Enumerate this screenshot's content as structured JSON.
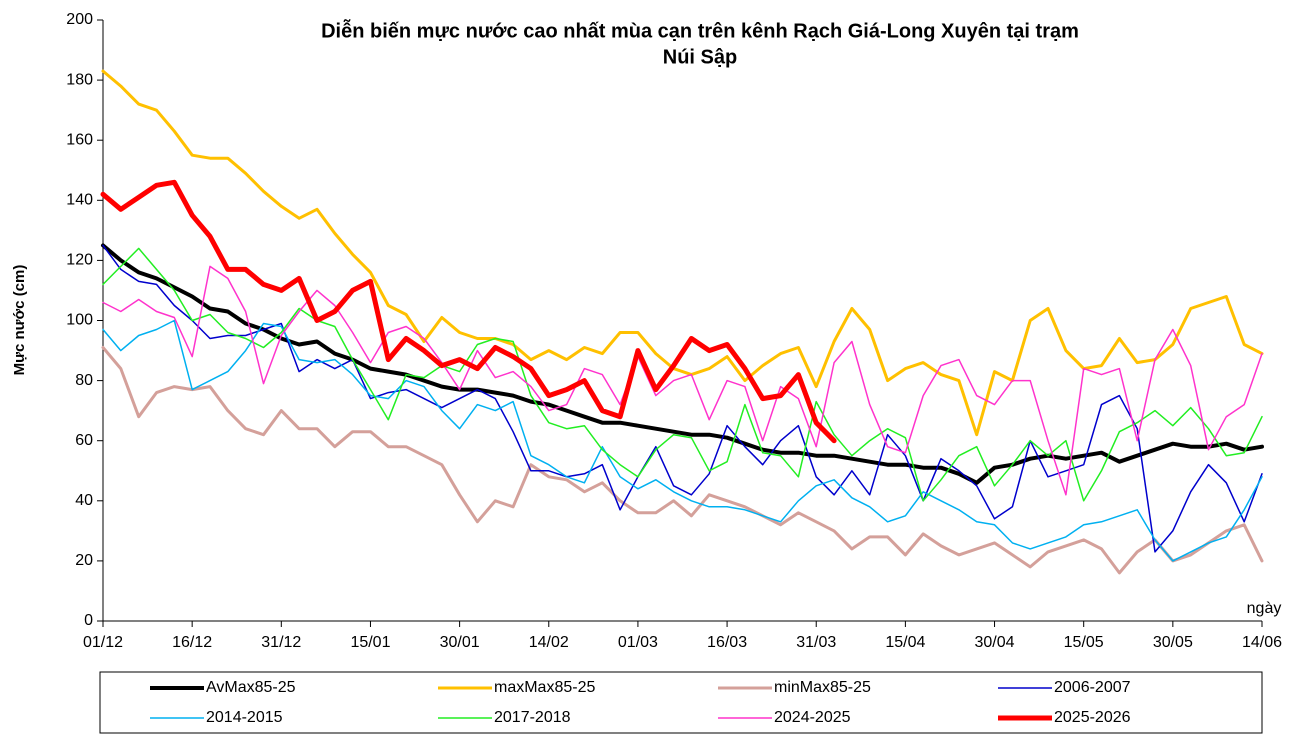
{
  "chart_data": {
    "type": "line",
    "title": [
      "Diễn biến mực nước cao nhất mùa cạn trên kênh Rạch Giá-Long Xuyên tại trạm",
      "Núi Sập"
    ],
    "y_label": "Mực nước (cm)",
    "x_label": "ngày",
    "x": [
      0,
      3,
      6,
      9,
      12,
      15,
      18,
      21,
      24,
      27,
      30,
      33,
      36,
      39,
      42,
      45,
      48,
      51,
      54,
      57,
      60,
      63,
      66,
      69,
      72,
      75,
      78,
      81,
      84,
      87,
      90,
      93,
      96,
      99,
      102,
      105,
      108,
      111,
      114,
      117,
      120,
      123,
      126,
      129,
      132,
      135,
      138,
      141,
      144,
      147,
      150,
      153,
      156,
      159,
      162,
      165,
      168,
      171,
      174,
      177,
      180,
      183,
      186,
      189,
      192,
      195
    ],
    "xlim": [
      0,
      195
    ],
    "xticks": [
      {
        "value": 0,
        "label": "01/12"
      },
      {
        "value": 15,
        "label": "16/12"
      },
      {
        "value": 30,
        "label": "31/12"
      },
      {
        "value": 45,
        "label": "15/01"
      },
      {
        "value": 60,
        "label": "30/01"
      },
      {
        "value": 75,
        "label": "14/02"
      },
      {
        "value": 90,
        "label": "01/03"
      },
      {
        "value": 105,
        "label": "16/03"
      },
      {
        "value": 120,
        "label": "31/03"
      },
      {
        "value": 135,
        "label": "15/04"
      },
      {
        "value": 150,
        "label": "30/04"
      },
      {
        "value": 165,
        "label": "15/05"
      },
      {
        "value": 180,
        "label": "30/05"
      },
      {
        "value": 195,
        "label": "14/06"
      }
    ],
    "ylim": [
      0,
      200
    ],
    "yticks": [
      0,
      20,
      40,
      60,
      80,
      100,
      120,
      140,
      160,
      180,
      200
    ],
    "grid": false,
    "legend": "bottom",
    "series": [
      {
        "name": "AvMax85-25",
        "color": "#000000",
        "width": 4,
        "values": [
          125,
          120,
          116,
          114,
          111,
          108,
          104,
          103,
          99,
          97,
          94,
          92,
          93,
          89,
          87,
          84,
          83,
          82,
          80,
          78,
          77,
          77,
          76,
          75,
          73,
          72,
          70,
          68,
          66,
          66,
          65,
          64,
          63,
          62,
          62,
          61,
          59,
          57,
          56,
          56,
          55,
          55,
          54,
          53,
          52,
          52,
          51,
          51,
          49,
          46,
          51,
          52,
          54,
          55,
          54,
          55,
          56,
          53,
          55,
          57,
          59,
          58,
          58,
          59,
          57,
          58
        ]
      },
      {
        "name": "maxMax85-25",
        "color": "#ffc000",
        "width": 3,
        "values": [
          183,
          178,
          172,
          170,
          163,
          155,
          154,
          154,
          149,
          143,
          138,
          134,
          137,
          129,
          122,
          116,
          105,
          102,
          93,
          101,
          96,
          94,
          94,
          92,
          87,
          90,
          87,
          91,
          89,
          96,
          96,
          89,
          84,
          82,
          84,
          88,
          80,
          85,
          89,
          91,
          78,
          93,
          104,
          97,
          80,
          84,
          86,
          82,
          80,
          62,
          83,
          80,
          100,
          104,
          90,
          84,
          85,
          94,
          86,
          87,
          92,
          104,
          106,
          108,
          92,
          89
        ]
      },
      {
        "name": "minMax85-25",
        "color": "#d4a09a",
        "width": 3,
        "values": [
          91,
          84,
          68,
          76,
          78,
          77,
          78,
          70,
          64,
          62,
          70,
          64,
          64,
          58,
          63,
          63,
          58,
          58,
          55,
          52,
          42,
          33,
          40,
          38,
          52,
          48,
          47,
          43,
          46,
          40,
          36,
          36,
          40,
          35,
          42,
          40,
          38,
          35,
          32,
          36,
          33,
          30,
          24,
          28,
          28,
          22,
          29,
          25,
          22,
          24,
          26,
          22,
          18,
          23,
          25,
          27,
          24,
          16,
          23,
          27,
          20,
          22,
          26,
          30,
          32,
          20
        ]
      },
      {
        "name": "2006-2007",
        "color": "#0000cc",
        "width": 1.5,
        "values": [
          125,
          117,
          113,
          112,
          105,
          100,
          94,
          95,
          95,
          97,
          99,
          83,
          87,
          84,
          87,
          74,
          76,
          77,
          74,
          71,
          74,
          77,
          74,
          63,
          50,
          50,
          48,
          49,
          52,
          37,
          48,
          58,
          45,
          42,
          49,
          65,
          58,
          52,
          60,
          65,
          48,
          42,
          50,
          42,
          62,
          55,
          40,
          54,
          50,
          45,
          34,
          38,
          60,
          48,
          50,
          52,
          72,
          75,
          64,
          23,
          30,
          43,
          52,
          46,
          33,
          49
        ]
      },
      {
        "name": "2014-2015",
        "color": "#00b0f0",
        "width": 1.5,
        "values": [
          97,
          90,
          95,
          97,
          100,
          77,
          80,
          83,
          90,
          99,
          98,
          87,
          86,
          87,
          82,
          75,
          74,
          80,
          78,
          70,
          64,
          72,
          70,
          73,
          55,
          52,
          48,
          46,
          58,
          48,
          44,
          47,
          43,
          40,
          38,
          38,
          37,
          35,
          33,
          40,
          45,
          47,
          41,
          38,
          33,
          35,
          43,
          40,
          37,
          33,
          32,
          26,
          24,
          26,
          28,
          32,
          33,
          35,
          37,
          27,
          20,
          23,
          26,
          28,
          37,
          48
        ]
      },
      {
        "name": "2017-2018",
        "color": "#22ee22",
        "width": 1.5,
        "values": [
          112,
          118,
          124,
          117,
          110,
          100,
          102,
          96,
          94,
          91,
          96,
          104,
          100,
          98,
          87,
          77,
          67,
          82,
          81,
          85,
          83,
          92,
          94,
          93,
          75,
          66,
          64,
          65,
          57,
          52,
          48,
          57,
          62,
          61,
          50,
          53,
          72,
          56,
          55,
          48,
          73,
          62,
          55,
          60,
          64,
          61,
          40,
          47,
          55,
          58,
          45,
          52,
          60,
          55,
          60,
          40,
          50,
          63,
          66,
          70,
          65,
          71,
          64,
          55,
          56,
          68
        ]
      },
      {
        "name": "2024-2025",
        "color": "#ff33cc",
        "width": 1.5,
        "values": [
          106,
          103,
          107,
          103,
          101,
          88,
          118,
          114,
          103,
          79,
          95,
          103,
          110,
          105,
          96,
          86,
          96,
          98,
          94,
          86,
          77,
          90,
          81,
          83,
          78,
          70,
          72,
          84,
          82,
          72,
          88,
          75,
          80,
          82,
          67,
          80,
          78,
          60,
          78,
          74,
          58,
          86,
          93,
          72,
          58,
          56,
          75,
          85,
          87,
          75,
          72,
          80,
          80,
          60,
          42,
          84,
          82,
          84,
          60,
          87,
          97,
          85,
          57,
          68,
          72,
          89
        ]
      },
      {
        "name": "2025-2026",
        "color": "#ff0000",
        "width": 5,
        "values": [
          142,
          137,
          141,
          145,
          146,
          135,
          128,
          117,
          117,
          112,
          110,
          114,
          100,
          103,
          110,
          113,
          87,
          94,
          90,
          85,
          87,
          84,
          91,
          88,
          84,
          75,
          77,
          80,
          70,
          68,
          90,
          77,
          85,
          94,
          90,
          92,
          84,
          74,
          75,
          82,
          66,
          60,
          null,
          null,
          null,
          null,
          null,
          null,
          null,
          null,
          null,
          null,
          null,
          null,
          null,
          null,
          null,
          null,
          null,
          null,
          null,
          null,
          null,
          null,
          null,
          null
        ]
      }
    ]
  }
}
